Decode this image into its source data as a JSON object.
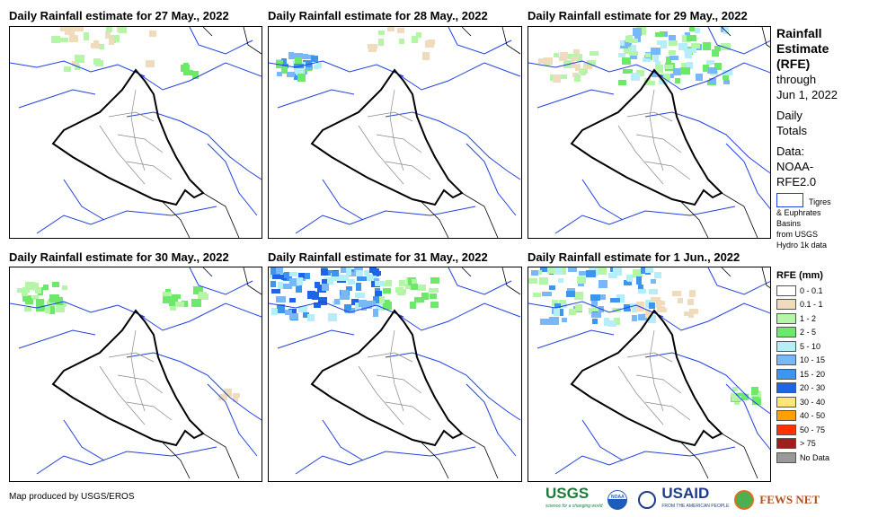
{
  "panels": [
    {
      "title": "Daily Rainfall estimate for 27 May., 2022"
    },
    {
      "title": "Daily Rainfall estimate for 28 May., 2022"
    },
    {
      "title": "Daily Rainfall estimate for 29 May., 2022"
    },
    {
      "title": "Daily Rainfall estimate for 30 May., 2022"
    },
    {
      "title": "Daily Rainfall estimate for 31 May., 2022"
    },
    {
      "title": "Daily Rainfall estimate for 1 Jun., 2022"
    }
  ],
  "side": {
    "title_lines": [
      "Rainfall",
      "Estimate",
      "(RFE)"
    ],
    "through": "through",
    "date": "Jun 1, 2022",
    "daily": [
      "Daily",
      "Totals"
    ],
    "data_lines": [
      "Data:",
      "NOAA-",
      "RFE2.0"
    ],
    "basin_label": "Tigres",
    "basin_lines": [
      "& Euphrates",
      "Basins",
      "from USGS",
      "Hydro 1k data"
    ]
  },
  "legend": {
    "title": "RFE (mm)",
    "items": [
      {
        "label": "0 - 0.1",
        "color": "#ffffff"
      },
      {
        "label": "0.1 - 1",
        "color": "#f0dcbc"
      },
      {
        "label": "1 - 2",
        "color": "#b4f5a8"
      },
      {
        "label": "2 - 5",
        "color": "#6ee86a"
      },
      {
        "label": "5 - 10",
        "color": "#b4eef8"
      },
      {
        "label": "10 - 15",
        "color": "#78b8f8"
      },
      {
        "label": "15 - 20",
        "color": "#3c96f0"
      },
      {
        "label": "20 - 30",
        "color": "#1e64e6"
      },
      {
        "label": "30 - 40",
        "color": "#ffe678"
      },
      {
        "label": "40 - 50",
        "color": "#ffa000"
      },
      {
        "label": "50 - 75",
        "color": "#ff3200"
      },
      {
        "label": "> 75",
        "color": "#a01e1e"
      },
      {
        "label": "No Data",
        "color": "#999999"
      }
    ]
  },
  "credit": "Map produced by USGS/EROS",
  "logos": {
    "usgs": "USGS",
    "usgs_tag": "science for a changing world",
    "noaa": "NOAA",
    "usaid": "USAID",
    "usaid_tag": "FROM THE AMERICAN PEOPLE",
    "fews": "FEWS NET"
  }
}
